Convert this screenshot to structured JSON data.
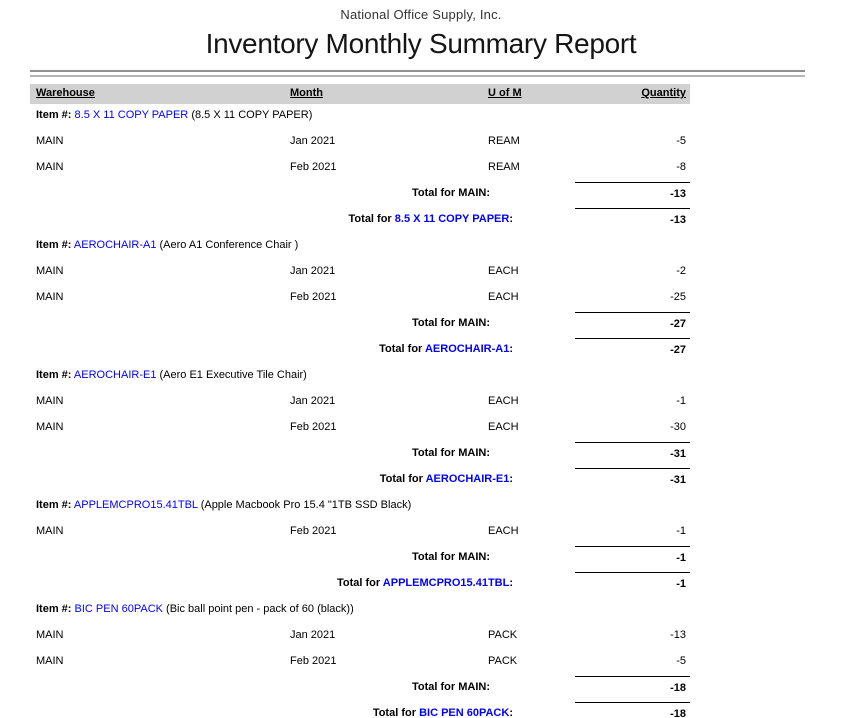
{
  "report": {
    "company": "National Office Supply, Inc.",
    "title": "Inventory Monthly Summary Report"
  },
  "columns": {
    "warehouse": "Warehouse",
    "month": "Month",
    "uom": "U of M",
    "quantity": "Quantity"
  },
  "labels": {
    "item_prefix": "Item #:",
    "total_for": "Total for",
    "colon": ":"
  },
  "colors": {
    "link_blue": "#0000FF",
    "header_band": "#D1D1D1",
    "rule_dark": "#8F8F8F",
    "rule_light": "#B5B5B5"
  },
  "groups": [
    {
      "item_code": "8.5 X 11 COPY PAPER",
      "item_description": "(8.5 X 11 COPY PAPER)",
      "rows": [
        {
          "warehouse": "MAIN",
          "month": "Jan 2021",
          "uom": "REAM",
          "quantity": "-5"
        },
        {
          "warehouse": "MAIN",
          "month": "Feb 2021",
          "uom": "REAM",
          "quantity": "-8"
        }
      ],
      "warehouse_total_label": "Total for MAIN:",
      "warehouse_total": "-13",
      "item_total": "-13"
    },
    {
      "item_code": "AEROCHAIR-A1",
      "item_description": "(Aero A1 Conference Chair )",
      "rows": [
        {
          "warehouse": "MAIN",
          "month": "Jan 2021",
          "uom": "EACH",
          "quantity": "-2"
        },
        {
          "warehouse": "MAIN",
          "month": "Feb 2021",
          "uom": "EACH",
          "quantity": "-25"
        }
      ],
      "warehouse_total_label": "Total for MAIN:",
      "warehouse_total": "-27",
      "item_total": "-27"
    },
    {
      "item_code": "AEROCHAIR-E1",
      "item_description": "(Aero E1 Executive Tile Chair)",
      "rows": [
        {
          "warehouse": "MAIN",
          "month": "Jan 2021",
          "uom": "EACH",
          "quantity": "-1"
        },
        {
          "warehouse": "MAIN",
          "month": "Feb 2021",
          "uom": "EACH",
          "quantity": "-30"
        }
      ],
      "warehouse_total_label": "Total for MAIN:",
      "warehouse_total": "-31",
      "item_total": "-31"
    },
    {
      "item_code": "APPLEMCPRO15.41TBL",
      "item_description": "(Apple Macbook Pro 15.4 \"1TB SSD Black)",
      "rows": [
        {
          "warehouse": "MAIN",
          "month": "Feb 2021",
          "uom": "EACH",
          "quantity": "-1"
        }
      ],
      "warehouse_total_label": "Total for MAIN:",
      "warehouse_total": "-1",
      "item_total": "-1"
    },
    {
      "item_code": "BIC PEN 60PACK",
      "item_description": "(Bic ball point pen - pack of 60 (black))",
      "rows": [
        {
          "warehouse": "MAIN",
          "month": "Jan 2021",
          "uom": "PACK",
          "quantity": "-13"
        },
        {
          "warehouse": "MAIN",
          "month": "Feb 2021",
          "uom": "PACK",
          "quantity": "-5"
        }
      ],
      "warehouse_total_label": "Total for MAIN:",
      "warehouse_total": "-18",
      "item_total": "-18"
    }
  ]
}
